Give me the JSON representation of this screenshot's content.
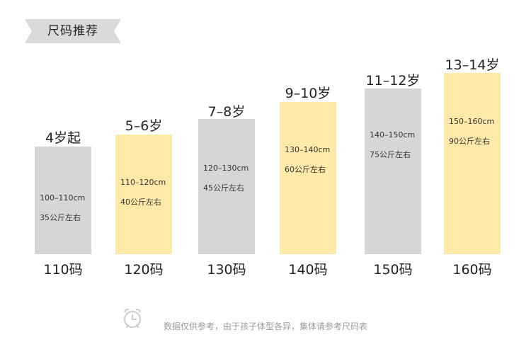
{
  "title": "尺码推荐",
  "colors": {
    "gray": "#d6d6d6",
    "yellow": "#fde9a8",
    "banner": "#dadada",
    "clock": "#cccccc"
  },
  "sizes": [
    {
      "age": "4岁起",
      "height_range": "100–110cm",
      "weight": "35公斤左右",
      "size": "110码",
      "color": "gray",
      "range_cm": [
        100,
        110
      ]
    },
    {
      "age": "5–6岁",
      "height_range": "110–120cm",
      "weight": "40公斤左右",
      "size": "120码",
      "color": "yellow",
      "range_cm": [
        110,
        120
      ]
    },
    {
      "age": "7–8岁",
      "height_range": "120–130cm",
      "weight": "45公斤左右",
      "size": "130码",
      "color": "gray",
      "range_cm": [
        120,
        130
      ]
    },
    {
      "age": "9–10岁",
      "height_range": "130–140cm",
      "weight": "60公斤左右",
      "size": "140码",
      "color": "yellow",
      "range_cm": [
        130,
        140
      ]
    },
    {
      "age": "11–12岁",
      "height_range": "140–150cm",
      "weight": "75公斤左右",
      "size": "150码",
      "color": "gray",
      "range_cm": [
        140,
        150
      ]
    },
    {
      "age": "13–14岁",
      "height_range": "150–160cm",
      "weight": "90公斤左右",
      "size": "160码",
      "color": "yellow",
      "range_cm": [
        150,
        160
      ]
    }
  ],
  "footer": {
    "icon": "alarm-clock-icon",
    "note": "数据仅供参考，由于孩子体型各异，集体请参考尺码表"
  }
}
